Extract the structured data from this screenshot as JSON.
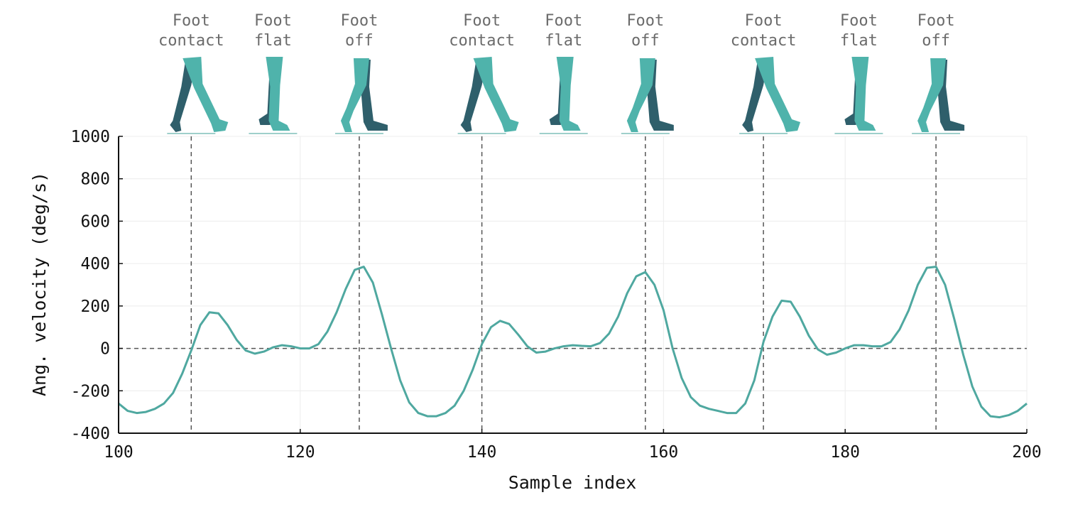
{
  "chart_data": {
    "type": "line",
    "title": "",
    "xlabel": "Sample index",
    "ylabel": "Ang. velocity (deg/s)",
    "xlim": [
      100,
      200
    ],
    "ylim": [
      -400,
      1000
    ],
    "xticks": [
      100,
      120,
      140,
      160,
      180,
      200
    ],
    "yticks": [
      -400,
      -200,
      0,
      200,
      400,
      600,
      800,
      1000
    ],
    "grid": true,
    "zero_line": true,
    "series": [
      {
        "color": "#4fa8a0",
        "x": [
          100,
          101,
          102,
          103,
          104,
          105,
          106,
          107,
          108,
          109,
          110,
          111,
          112,
          113,
          114,
          115,
          116,
          117,
          118,
          119,
          120,
          121,
          122,
          123,
          124,
          125,
          126,
          127,
          128,
          129,
          130,
          131,
          132,
          133,
          134,
          135,
          136,
          137,
          138,
          139,
          140,
          141,
          142,
          143,
          144,
          145,
          146,
          147,
          148,
          149,
          150,
          151,
          152,
          153,
          154,
          155,
          156,
          157,
          158,
          159,
          160,
          161,
          162,
          163,
          164,
          165,
          166,
          167,
          168,
          169,
          170,
          171,
          172,
          173,
          174,
          175,
          176,
          177,
          178,
          179,
          180,
          181,
          182,
          183,
          184,
          185,
          186,
          187,
          188,
          189,
          190,
          191,
          192,
          193,
          194,
          195,
          196,
          197,
          198,
          199,
          200
        ],
        "y": [
          -260,
          -295,
          -305,
          -300,
          -285,
          -260,
          -210,
          -120,
          -10,
          110,
          170,
          165,
          110,
          40,
          -10,
          -25,
          -15,
          5,
          15,
          10,
          0,
          0,
          20,
          80,
          170,
          280,
          370,
          385,
          310,
          160,
          0,
          -150,
          -255,
          -305,
          -320,
          -320,
          -305,
          -270,
          -200,
          -100,
          20,
          100,
          130,
          115,
          65,
          10,
          -20,
          -15,
          0,
          10,
          15,
          12,
          10,
          25,
          70,
          150,
          260,
          340,
          360,
          300,
          180,
          0,
          -140,
          -230,
          -270,
          -285,
          -295,
          -305,
          -305,
          -260,
          -150,
          30,
          150,
          225,
          220,
          150,
          60,
          -5,
          -30,
          -20,
          0,
          15,
          15,
          10,
          10,
          30,
          90,
          180,
          300,
          380,
          385,
          300,
          140,
          -30,
          -180,
          -275,
          -320,
          -325,
          -315,
          -295,
          -260
        ]
      }
    ],
    "events": [
      {
        "x": 108,
        "label": [
          "Foot",
          "contact"
        ]
      },
      {
        "x": 117,
        "label": [
          "Foot",
          "flat"
        ]
      },
      {
        "x": 126.5,
        "label": [
          "Foot",
          "off"
        ]
      },
      {
        "x": 140,
        "label": [
          "Foot",
          "contact"
        ]
      },
      {
        "x": 149,
        "label": [
          "Foot",
          "flat"
        ]
      },
      {
        "x": 158,
        "label": [
          "Foot",
          "off"
        ]
      },
      {
        "x": 171,
        "label": [
          "Foot",
          "contact"
        ]
      },
      {
        "x": 181.5,
        "label": [
          "Foot",
          "flat"
        ]
      },
      {
        "x": 190,
        "label": [
          "Foot",
          "off"
        ]
      }
    ],
    "event_lines_at": [
      108,
      126.5,
      140,
      158,
      171,
      190
    ]
  },
  "illustrations": {
    "leg_front_color": "#4fb3ab",
    "leg_back_color": "#2f5f6b",
    "ground_color": "#9fcfcb",
    "icon": "walking-legs-icon"
  }
}
